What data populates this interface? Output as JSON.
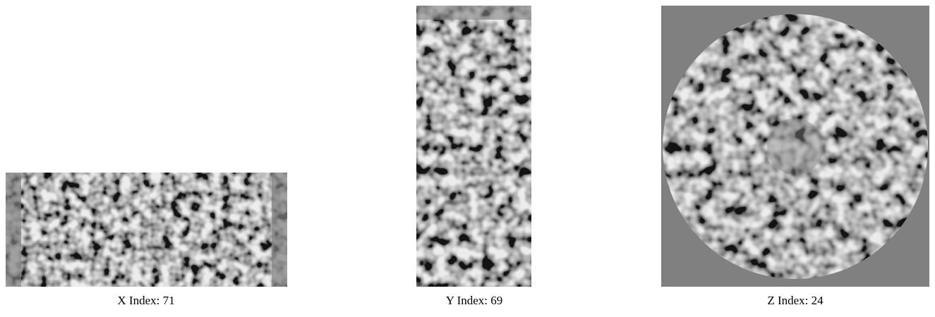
{
  "panels": [
    {
      "caption": "X Index: 71"
    },
    {
      "caption": "Y Index: 69"
    },
    {
      "caption": "Z Index: 24"
    }
  ]
}
